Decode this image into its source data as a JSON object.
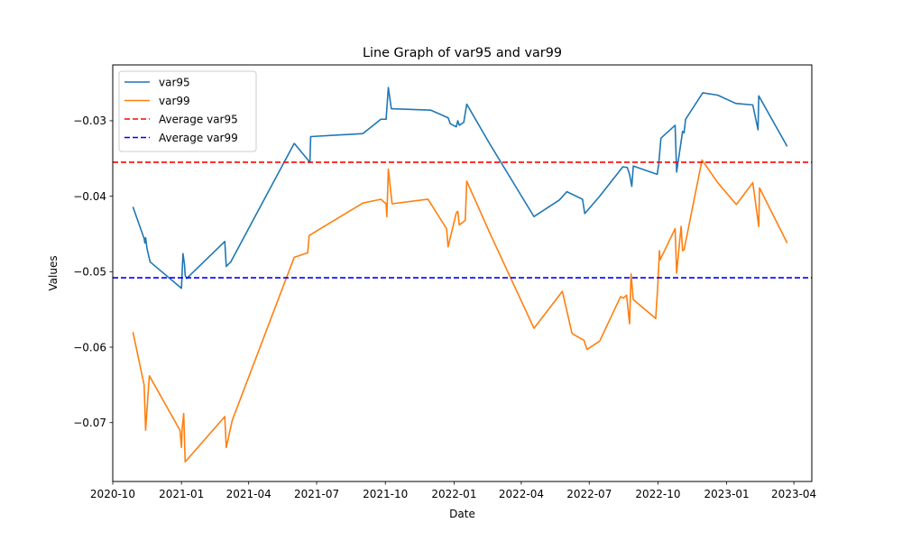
{
  "chart_data": {
    "type": "line",
    "title": "Line Graph of var95 and var99",
    "xlabel": "Date",
    "ylabel": "Values",
    "legend_position": "top-left",
    "grid": false,
    "xlim": [
      "2020-10-01",
      "2023-04-25"
    ],
    "ylim": [
      -0.0778,
      -0.0226
    ],
    "x_ticks": [
      "2020-10",
      "2021-01",
      "2021-04",
      "2021-07",
      "2021-10",
      "2022-01",
      "2022-04",
      "2022-07",
      "2022-10",
      "2023-01",
      "2023-04"
    ],
    "y_ticks": [
      -0.07,
      -0.06,
      -0.05,
      -0.04,
      -0.03
    ],
    "y_tick_labels": [
      "−0.07",
      "−0.06",
      "−0.05",
      "−0.04",
      "−0.03"
    ],
    "series": [
      {
        "name": "var95",
        "color": "#1f77b4",
        "points": [
          [
            "2020-10-28",
            -0.0414
          ],
          [
            "2020-11-12",
            -0.0456
          ],
          [
            "2020-11-13",
            -0.0462
          ],
          [
            "2020-11-14",
            -0.0455
          ],
          [
            "2020-11-16",
            -0.047
          ],
          [
            "2020-11-20",
            -0.0487
          ],
          [
            "2021-01-01",
            -0.0522
          ],
          [
            "2021-01-03",
            -0.0476
          ],
          [
            "2021-01-05",
            -0.049
          ],
          [
            "2021-01-06",
            -0.0505
          ],
          [
            "2021-01-08",
            -0.0509
          ],
          [
            "2021-02-28",
            -0.046
          ],
          [
            "2021-03-02",
            -0.0493
          ],
          [
            "2021-03-08",
            -0.0487
          ],
          [
            "2021-06-01",
            -0.033
          ],
          [
            "2021-06-22",
            -0.0355
          ],
          [
            "2021-06-23",
            -0.0321
          ],
          [
            "2021-09-01",
            -0.0317
          ],
          [
            "2021-09-25",
            -0.0298
          ],
          [
            "2021-10-02",
            -0.0298
          ],
          [
            "2021-10-05",
            -0.0256
          ],
          [
            "2021-10-09",
            -0.0284
          ],
          [
            "2021-12-01",
            -0.0286
          ],
          [
            "2021-12-24",
            -0.0296
          ],
          [
            "2021-12-27",
            -0.0304
          ],
          [
            "2022-01-04",
            -0.0308
          ],
          [
            "2022-01-06",
            -0.03
          ],
          [
            "2022-01-08",
            -0.0306
          ],
          [
            "2022-01-14",
            -0.0302
          ],
          [
            "2022-01-18",
            -0.0278
          ],
          [
            "2022-02-18",
            -0.0331
          ],
          [
            "2022-04-18",
            -0.0427
          ],
          [
            "2022-05-22",
            -0.0405
          ],
          [
            "2022-06-01",
            -0.0394
          ],
          [
            "2022-06-22",
            -0.0404
          ],
          [
            "2022-06-25",
            -0.0423
          ],
          [
            "2022-07-15",
            -0.04
          ],
          [
            "2022-08-15",
            -0.0361
          ],
          [
            "2022-08-21",
            -0.0362
          ],
          [
            "2022-08-24",
            -0.0371
          ],
          [
            "2022-08-27",
            -0.0387
          ],
          [
            "2022-08-29",
            -0.036
          ],
          [
            "2022-09-30",
            -0.0371
          ],
          [
            "2022-10-02",
            -0.0358
          ],
          [
            "2022-10-05",
            -0.0323
          ],
          [
            "2022-10-24",
            -0.0306
          ],
          [
            "2022-10-26",
            -0.0368
          ],
          [
            "2022-11-03",
            -0.0314
          ],
          [
            "2022-11-05",
            -0.0316
          ],
          [
            "2022-11-07",
            -0.0298
          ],
          [
            "2022-11-30",
            -0.0263
          ],
          [
            "2022-12-20",
            -0.0266
          ],
          [
            "2023-01-13",
            -0.0277
          ],
          [
            "2023-02-05",
            -0.0279
          ],
          [
            "2023-02-12",
            -0.0312
          ],
          [
            "2023-02-13",
            -0.0267
          ],
          [
            "2023-03-23",
            -0.0334
          ]
        ]
      },
      {
        "name": "var99",
        "color": "#ff7f0e",
        "points": [
          [
            "2020-10-28",
            -0.058
          ],
          [
            "2020-11-12",
            -0.065
          ],
          [
            "2020-11-14",
            -0.071
          ],
          [
            "2020-11-17",
            -0.0666
          ],
          [
            "2020-11-19",
            -0.0638
          ],
          [
            "2020-12-30",
            -0.071
          ],
          [
            "2021-01-01",
            -0.0733
          ],
          [
            "2021-01-02",
            -0.0707
          ],
          [
            "2021-01-04",
            -0.0688
          ],
          [
            "2021-01-06",
            -0.0752
          ],
          [
            "2021-02-28",
            -0.0692
          ],
          [
            "2021-03-02",
            -0.0733
          ],
          [
            "2021-03-10",
            -0.0697
          ],
          [
            "2021-06-01",
            -0.0481
          ],
          [
            "2021-06-19",
            -0.0475
          ],
          [
            "2021-06-21",
            -0.0452
          ],
          [
            "2021-09-01",
            -0.0409
          ],
          [
            "2021-09-25",
            -0.0404
          ],
          [
            "2021-10-02",
            -0.041
          ],
          [
            "2021-10-03",
            -0.0427
          ],
          [
            "2021-10-05",
            -0.0364
          ],
          [
            "2021-10-10",
            -0.041
          ],
          [
            "2021-11-27",
            -0.0404
          ],
          [
            "2021-12-22",
            -0.0443
          ],
          [
            "2021-12-24",
            -0.0467
          ],
          [
            "2022-01-04",
            -0.0422
          ],
          [
            "2022-01-06",
            -0.042
          ],
          [
            "2022-01-08",
            -0.0438
          ],
          [
            "2022-01-16",
            -0.0432
          ],
          [
            "2022-01-18",
            -0.038
          ],
          [
            "2022-02-18",
            -0.0449
          ],
          [
            "2022-04-18",
            -0.0575
          ],
          [
            "2022-05-26",
            -0.0526
          ],
          [
            "2022-06-08",
            -0.0582
          ],
          [
            "2022-06-24",
            -0.0591
          ],
          [
            "2022-06-28",
            -0.0603
          ],
          [
            "2022-07-15",
            -0.0592
          ],
          [
            "2022-08-12",
            -0.0533
          ],
          [
            "2022-08-16",
            -0.0535
          ],
          [
            "2022-08-20",
            -0.0531
          ],
          [
            "2022-08-24",
            -0.0569
          ],
          [
            "2022-08-26",
            -0.0503
          ],
          [
            "2022-08-29",
            -0.0537
          ],
          [
            "2022-09-28",
            -0.0562
          ],
          [
            "2022-10-01",
            -0.0515
          ],
          [
            "2022-10-03",
            -0.0472
          ],
          [
            "2022-10-04",
            -0.0484
          ],
          [
            "2022-10-24",
            -0.0443
          ],
          [
            "2022-10-26",
            -0.0502
          ],
          [
            "2022-11-01",
            -0.044
          ],
          [
            "2022-11-03",
            -0.0472
          ],
          [
            "2022-11-05",
            -0.0471
          ],
          [
            "2022-11-29",
            -0.0352
          ],
          [
            "2022-12-20",
            -0.0382
          ],
          [
            "2023-01-14",
            -0.0411
          ],
          [
            "2023-02-05",
            -0.0382
          ],
          [
            "2023-02-13",
            -0.044
          ],
          [
            "2023-02-14",
            -0.0389
          ],
          [
            "2023-03-23",
            -0.0462
          ]
        ]
      },
      {
        "name": "Average var95",
        "color": "#ff0000",
        "dashed": true,
        "hline": -0.0355
      },
      {
        "name": "Average var99",
        "color": "#0000ff",
        "dashed": true,
        "hline": -0.0508
      }
    ]
  }
}
